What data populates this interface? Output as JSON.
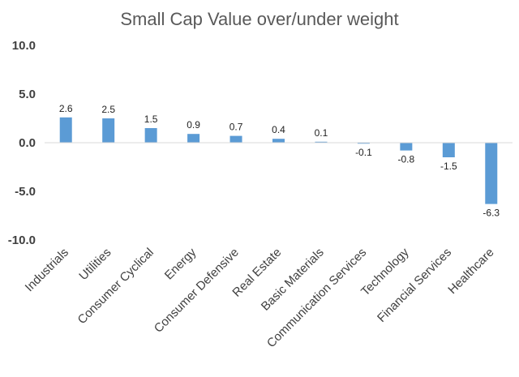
{
  "chart_data": {
    "type": "bar",
    "title": "Small Cap Value over/under weight",
    "xlabel": "",
    "ylabel": "",
    "categories": [
      "Industrials",
      "Utilities",
      "Consumer Cyclical",
      "Energy",
      "Consumer Defensive",
      "Real Estate",
      "Basic Materials",
      "Communication Services",
      "Technology",
      "Financial Services",
      "Healthcare"
    ],
    "values": [
      2.6,
      2.5,
      1.5,
      0.9,
      0.7,
      0.4,
      0.1,
      -0.1,
      -0.8,
      -1.5,
      -6.3
    ],
    "data_labels": [
      "2.6",
      "2.5",
      "1.5",
      "0.9",
      "0.7",
      "0.4",
      "0.1",
      "-0.1",
      "-0.8",
      "-1.5",
      "-6.3"
    ],
    "ylim": [
      -10,
      10
    ],
    "yticks": [
      10,
      5,
      0,
      -5,
      -10
    ],
    "ytick_labels": [
      "10.0",
      "5.0",
      "0.0",
      "-5.0",
      "-10.0"
    ],
    "grid": false,
    "legend": "none",
    "bar_color": "#5B9BD5",
    "axis_color": "#d9d9d9"
  }
}
